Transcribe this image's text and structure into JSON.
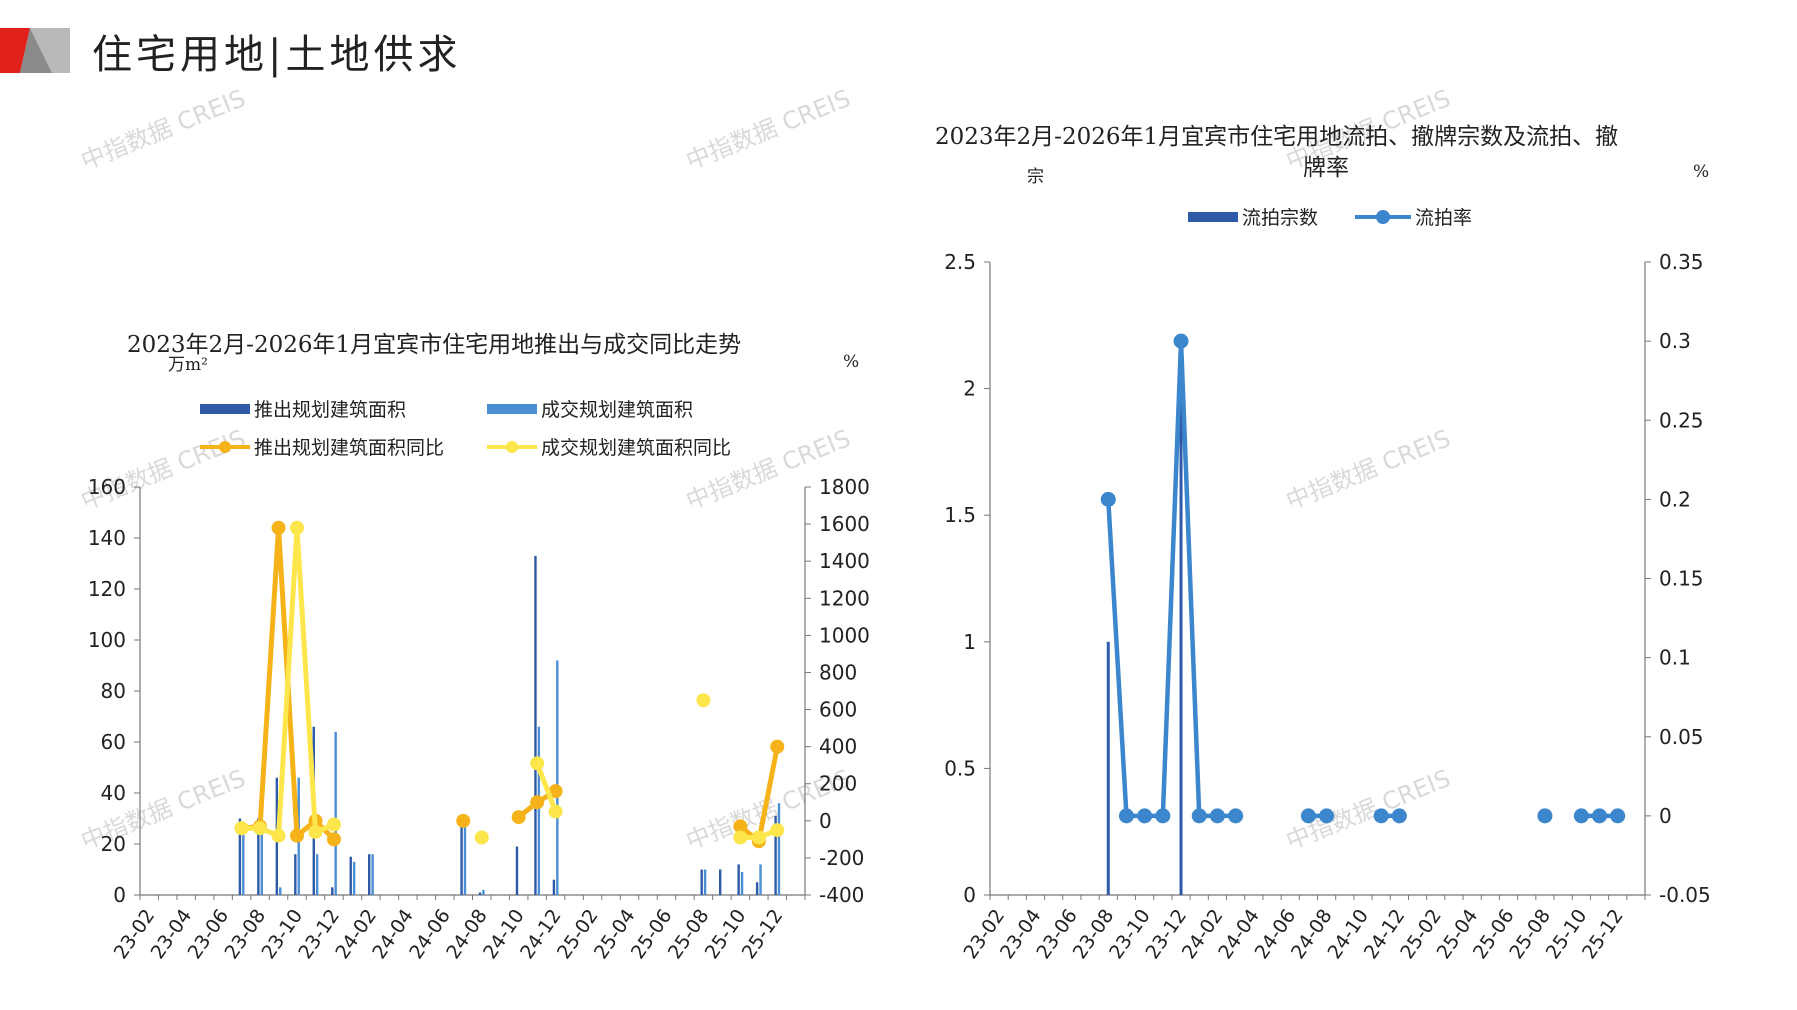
{
  "page": {
    "title": "住宅用地|土地供求",
    "watermark": "中指数据 CREIS"
  },
  "colors": {
    "dark_blue": "#2e5aa7",
    "light_blue": "#4a8fd4",
    "orange": "#f5b319",
    "yellow": "#fde64b",
    "line_blue": "#3b86cc",
    "logo_red": "#e0201b",
    "logo_gray": "#8a8a8a"
  },
  "chart_data": [
    {
      "type": "bar",
      "title": "2023年2月-2026年1月宜宾市住宅用地推出与成交同比走势",
      "y_unit_left": "万m²",
      "y_unit_right": "%",
      "ylim_left": [
        0,
        160
      ],
      "yticks_left": [
        0,
        20,
        40,
        60,
        80,
        100,
        120,
        140,
        160
      ],
      "ylim_right": [
        -400,
        1800
      ],
      "yticks_right": [
        -400,
        -200,
        0,
        200,
        400,
        600,
        800,
        1000,
        1200,
        1400,
        1600,
        1800
      ],
      "x": [
        "23-02",
        "23-03",
        "23-04",
        "23-05",
        "23-06",
        "23-07",
        "23-08",
        "23-09",
        "23-10",
        "23-11",
        "23-12",
        "24-01",
        "24-02",
        "24-03",
        "24-04",
        "24-05",
        "24-06",
        "24-07",
        "24-08",
        "24-09",
        "24-10",
        "24-11",
        "24-12",
        "25-01",
        "25-02",
        "25-03",
        "25-04",
        "25-05",
        "25-06",
        "25-07",
        "25-08",
        "25-09",
        "25-10",
        "25-11",
        "25-12",
        "26-01"
      ],
      "x_tick_labels": [
        "23-02",
        "23-04",
        "23-06",
        "23-08",
        "23-10",
        "23-12",
        "24-02",
        "24-04",
        "24-06",
        "24-08",
        "24-10",
        "24-12",
        "25-02",
        "25-04",
        "25-06",
        "25-08",
        "25-10",
        "25-12"
      ],
      "legend_position": "top",
      "series": [
        {
          "name": "推出规划建筑面积",
          "kind": "bar",
          "axis": "left",
          "color": "#2e5aa7",
          "values": [
            0,
            0,
            0,
            0,
            0,
            30,
            30,
            46,
            16,
            66,
            3,
            15,
            16,
            0,
            0,
            0,
            0,
            28,
            1,
            0,
            19,
            133,
            6,
            0,
            0,
            0,
            0,
            0,
            0,
            0,
            10,
            10,
            12,
            5,
            31,
            0
          ]
        },
        {
          "name": "成交规划建筑面积",
          "kind": "bar",
          "axis": "left",
          "color": "#4a8fd4",
          "values": [
            0,
            0,
            0,
            0,
            0,
            25,
            25,
            3,
            46,
            16,
            64,
            13,
            16,
            0,
            0,
            0,
            0,
            28,
            2,
            0,
            0,
            66,
            92,
            0,
            0,
            0,
            0,
            0,
            0,
            0,
            10,
            0,
            9,
            12,
            36,
            0
          ]
        },
        {
          "name": "推出规划建筑面积同比",
          "kind": "line",
          "axis": "right",
          "color": "#f5b319",
          "points": [
            [
              5,
              -40
            ],
            [
              6,
              -30
            ],
            [
              7,
              1580
            ],
            [
              8,
              -80
            ],
            [
              9,
              0
            ],
            [
              10,
              -100
            ]
          ],
          "points_2": [
            [
              17,
              0
            ]
          ],
          "points_3": [
            [
              20,
              20
            ],
            [
              21,
              100
            ],
            [
              22,
              160
            ]
          ],
          "points_4": [
            [
              32,
              -30
            ],
            [
              33,
              -110
            ],
            [
              34,
              400
            ]
          ]
        },
        {
          "name": "成交规划建筑面积同比",
          "kind": "line",
          "axis": "right",
          "color": "#fde64b",
          "points": [
            [
              5,
              -40
            ],
            [
              6,
              -40
            ],
            [
              7,
              -80
            ],
            [
              8,
              1580
            ],
            [
              9,
              -60
            ],
            [
              10,
              -20
            ]
          ],
          "points_2": [
            [
              18,
              -90
            ]
          ],
          "points_3": [
            [
              21,
              310
            ],
            [
              22,
              50
            ]
          ],
          "points_4": [
            [
              30,
              650
            ]
          ],
          "points_5": [
            [
              32,
              -90
            ],
            [
              33,
              -90
            ],
            [
              34,
              -50
            ]
          ]
        }
      ]
    },
    {
      "type": "bar",
      "title_line1": "2023年2月-2026年1月宜宾市住宅用地流拍、撤牌宗数及流拍、撤",
      "title_line2": "牌率",
      "y_unit_left": "宗",
      "y_unit_right": "%",
      "ylim_left": [
        0,
        2.5
      ],
      "yticks_left": [
        "0",
        "0.5",
        "1",
        "1.5",
        "2",
        "2.5"
      ],
      "ylim_right": [
        -0.05,
        0.35
      ],
      "yticks_right": [
        "-0.05",
        "0",
        "0.05",
        "0.1",
        "0.15",
        "0.2",
        "0.25",
        "0.3",
        "0.35"
      ],
      "x": [
        "23-02",
        "23-03",
        "23-04",
        "23-05",
        "23-06",
        "23-07",
        "23-08",
        "23-09",
        "23-10",
        "23-11",
        "23-12",
        "24-01",
        "24-02",
        "24-03",
        "24-04",
        "24-05",
        "24-06",
        "24-07",
        "24-08",
        "24-09",
        "24-10",
        "24-11",
        "24-12",
        "25-01",
        "25-02",
        "25-03",
        "25-04",
        "25-05",
        "25-06",
        "25-07",
        "25-08",
        "25-09",
        "25-10",
        "25-11",
        "25-12",
        "26-01"
      ],
      "x_tick_labels": [
        "23-02",
        "23-04",
        "23-06",
        "23-08",
        "23-10",
        "23-12",
        "24-02",
        "24-04",
        "24-06",
        "24-08",
        "24-10",
        "24-12",
        "25-02",
        "25-04",
        "25-06",
        "25-08",
        "25-10",
        "25-12"
      ],
      "legend_position": "top",
      "series": [
        {
          "name": "流拍宗数",
          "kind": "bar",
          "axis": "left",
          "color": "#2e5aa7",
          "values": [
            0,
            0,
            0,
            0,
            0,
            0,
            1,
            0,
            0,
            0,
            2,
            0,
            0,
            0,
            0,
            0,
            0,
            0,
            0,
            0,
            0,
            0,
            0,
            0,
            0,
            0,
            0,
            0,
            0,
            0,
            0,
            0,
            0,
            0,
            0,
            0
          ]
        },
        {
          "name": "流拍率",
          "kind": "line",
          "axis": "right",
          "color": "#3b86cc",
          "points": [
            [
              6,
              0.2
            ],
            [
              7,
              0
            ],
            [
              8,
              0
            ],
            [
              9,
              0
            ],
            [
              10,
              0.3
            ],
            [
              11,
              0
            ],
            [
              12,
              0
            ],
            [
              13,
              0
            ]
          ],
          "points_2": [
            [
              17,
              0
            ],
            [
              18,
              0
            ]
          ],
          "points_3": [
            [
              21,
              0
            ],
            [
              22,
              0
            ]
          ],
          "points_4": [
            [
              30,
              0
            ]
          ],
          "points_5": [
            [
              32,
              0
            ],
            [
              33,
              0
            ],
            [
              34,
              0
            ]
          ]
        }
      ]
    }
  ]
}
